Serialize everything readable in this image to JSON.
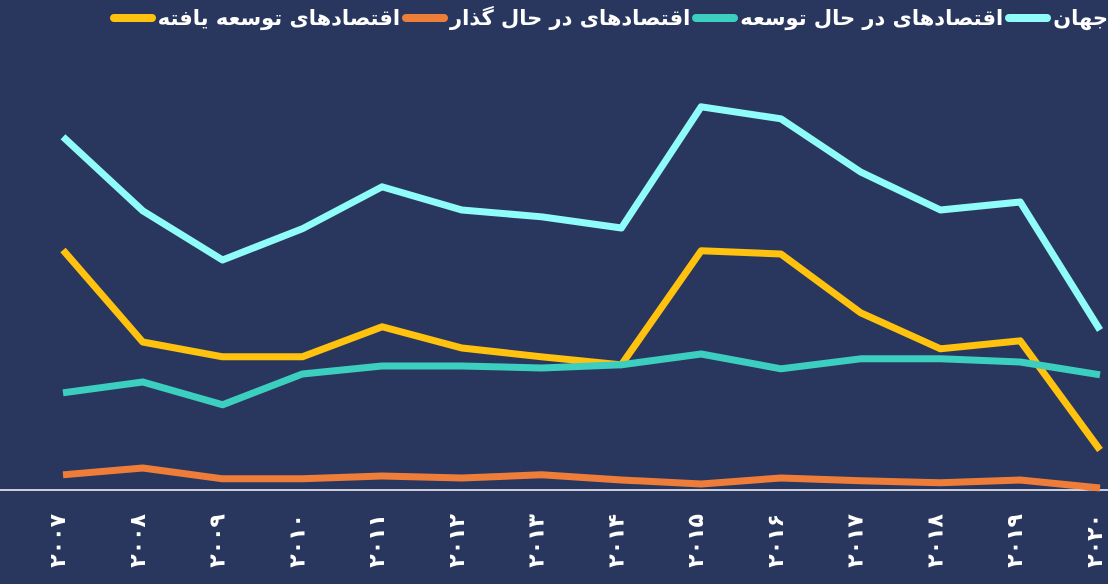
{
  "chart_data": {
    "type": "line",
    "categories": [
      "۲۰۰۷",
      "۲۰۰۸",
      "۲۰۰۹",
      "۲۰۱۰",
      "۲۰۱۱",
      "۲۰۱۲",
      "۲۰۱۳",
      "۲۰۱۴",
      "۲۰۱۵",
      "۲۰۱۶",
      "۲۰۱۷",
      "۲۰۱۸",
      "۲۰۱۹",
      "۲۰۲۰"
    ],
    "series": [
      {
        "name": "جهان",
        "color": "#8ffcf9",
        "values": [
          88.3,
          69.8,
          57.5,
          65.3,
          75.8,
          70,
          68.3,
          65.5,
          95.8,
          92.8,
          79.5,
          70,
          72,
          40
        ]
      },
      {
        "name": "اقتصادهای در حال توسعه",
        "color": "#3ccfbf",
        "values": [
          24.3,
          27,
          21.3,
          29,
          31,
          31,
          30.5,
          31.3,
          34,
          30.3,
          32.8,
          32.8,
          32,
          28.8
        ]
      },
      {
        "name": "اقتصادهای در حال گذار",
        "color": "#ef7d3a",
        "values": [
          3.8,
          5.5,
          2.8,
          2.8,
          3.5,
          3,
          3.8,
          2.5,
          1.5,
          3,
          2.3,
          1.8,
          2.5,
          0.5
        ]
      },
      {
        "name": "اقتصادهای توسعه یافته",
        "color": "#ffc20e",
        "values": [
          60,
          37,
          33.3,
          33.3,
          40.8,
          35.5,
          33.3,
          31.3,
          59.8,
          59,
          44.3,
          35.3,
          37.3,
          10
        ]
      }
    ],
    "ylim": [
      0,
      100
    ],
    "grid": false,
    "legend": "top"
  }
}
